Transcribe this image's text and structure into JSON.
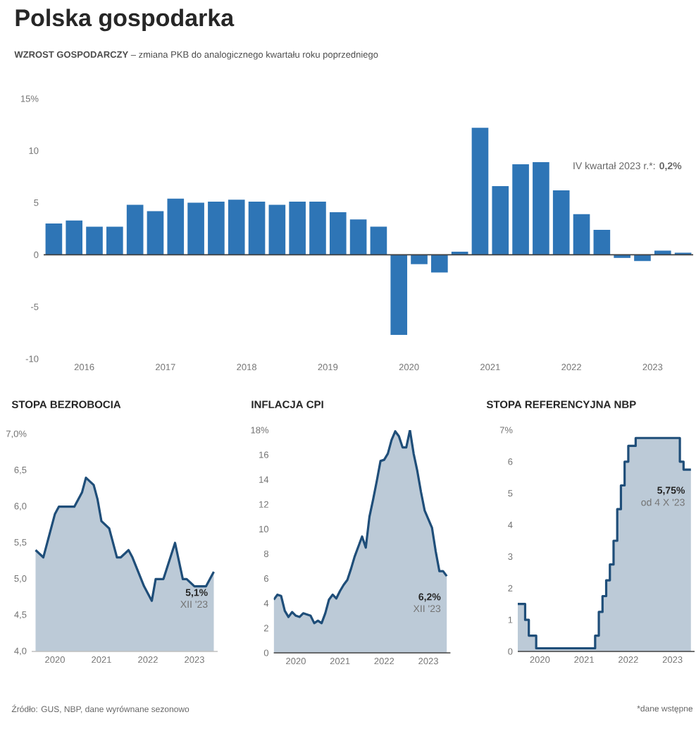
{
  "chart_data": [
    {
      "type": "bar",
      "title": "Polska gospodarka",
      "subtitle": "**WZROST GOSPODARCZY** – zmiana PKB do analogicznego kwartału roku poprzedniego",
      "x": [
        2016.125,
        2016.375,
        2016.625,
        2016.875,
        2017.125,
        2017.375,
        2017.625,
        2017.875,
        2018.125,
        2018.375,
        2018.625,
        2018.875,
        2019.125,
        2019.375,
        2019.625,
        2019.875,
        2020.125,
        2020.375,
        2020.625,
        2020.875,
        2021.125,
        2021.375,
        2021.625,
        2021.875,
        2022.125,
        2022.375,
        2022.625,
        2022.875,
        2023.125,
        2023.375,
        2023.625,
        2023.875
      ],
      "values": [
        3.0,
        3.3,
        2.7,
        2.7,
        4.8,
        4.2,
        5.4,
        5.0,
        5.1,
        5.3,
        5.1,
        4.8,
        5.1,
        5.1,
        4.1,
        3.4,
        2.7,
        -7.7,
        -0.9,
        -1.7,
        0.3,
        12.2,
        6.6,
        8.7,
        8.9,
        6.2,
        3.9,
        2.4,
        -0.3,
        -0.6,
        0.4,
        0.2
      ],
      "color": "#2e75b6",
      "xlim": [
        2016,
        2024
      ],
      "xticks": [
        {
          "value": 2016.5,
          "label": "2016"
        },
        {
          "value": 2017.5,
          "label": "2017"
        },
        {
          "value": 2018.5,
          "label": "2018"
        },
        {
          "value": 2019.5,
          "label": "2019"
        },
        {
          "value": 2020.5,
          "label": "2020"
        },
        {
          "value": 2021.5,
          "label": "2021"
        },
        {
          "value": 2022.5,
          "label": "2022"
        },
        {
          "value": 2023.5,
          "label": "2023"
        }
      ],
      "ylim": [
        -10,
        15
      ],
      "yticks": [
        {
          "value": 15,
          "label": "15%"
        },
        10,
        5,
        0,
        -5,
        -10
      ],
      "annotations": [
        "IV kwartał 2023 r.*: **0,2%**"
      ]
    },
    {
      "type": "area",
      "title": "STOPA BEZROBOCIA",
      "x": [
        "2020-02",
        "2020-04",
        "2020-07",
        "2020-08",
        "2020-12",
        "2021-02",
        "2021-03",
        "2021-05",
        "2021-06",
        "2021-07",
        "2021-09",
        "2021-11",
        "2021-12",
        "2022-02",
        "2022-03",
        "2022-06",
        "2022-08",
        "2022-09",
        "2022-11",
        "2023-02",
        "2023-04",
        "2023-05",
        "2023-07",
        "2023-10",
        "2023-12"
      ],
      "values": [
        5.4,
        5.3,
        5.9,
        6.0,
        6.0,
        6.2,
        6.4,
        6.3,
        6.1,
        5.8,
        5.7,
        5.3,
        5.3,
        5.4,
        5.3,
        4.9,
        4.7,
        5.0,
        5.0,
        5.5,
        5.0,
        5.0,
        4.9,
        4.9,
        5.1
      ],
      "color": "#1f4e79",
      "xlim": [
        "2020-01",
        "2024-01"
      ],
      "xticks": [
        {
          "value": "2020-07",
          "label": "2020"
        },
        {
          "value": "2021-07",
          "label": "2021"
        },
        {
          "value": "2022-07",
          "label": "2022"
        },
        {
          "value": "2023-07",
          "label": "2023"
        }
      ],
      "ylim": [
        4,
        7
      ],
      "yticks": [
        {
          "value": 4,
          "label": "4,0"
        },
        {
          "value": 4.5,
          "label": "4,5"
        },
        {
          "value": 5,
          "label": "5,0"
        },
        {
          "value": 5.5,
          "label": "5,5"
        },
        {
          "value": 6,
          "label": "6,0"
        },
        {
          "value": 6.5,
          "label": "6,5"
        },
        {
          "value": 7,
          "label": "7,0%"
        }
      ],
      "annotations": [
        {
          "text": "**5,1%**",
          "x": "2023-12",
          "y": 5.1
        },
        "XII '23",
        "Źródło: GUS, NBP, dane wyrównane sezonowo"
      ]
    },
    {
      "type": "area",
      "title": "INFLACJA CPI",
      "x": [
        "2020-01",
        "2020-02",
        "2020-03",
        "2020-04",
        "2020-05",
        "2020-06",
        "2020-07",
        "2020-08",
        "2020-09",
        "2020-10",
        "2020-11",
        "2020-12",
        "2021-01",
        "2021-02",
        "2021-03",
        "2021-04",
        "2021-05",
        "2021-06",
        "2021-07",
        "2021-08",
        "2021-09",
        "2021-10",
        "2021-11",
        "2021-12",
        "2022-01",
        "2022-02",
        "2022-03",
        "2022-04",
        "2022-05",
        "2022-06",
        "2022-07",
        "2022-08",
        "2022-09",
        "2022-10",
        "2022-11",
        "2022-12",
        "2023-01",
        "2023-02",
        "2023-03",
        "2023-04",
        "2023-05",
        "2023-06",
        "2023-07",
        "2023-08",
        "2023-09",
        "2023-10",
        "2023-11",
        "2023-12"
      ],
      "values": [
        4.3,
        4.7,
        4.6,
        3.4,
        2.9,
        3.3,
        3.0,
        2.9,
        3.2,
        3.1,
        3.0,
        2.4,
        2.6,
        2.4,
        3.2,
        4.3,
        4.7,
        4.4,
        5.0,
        5.5,
        5.9,
        6.8,
        7.8,
        8.6,
        9.4,
        8.5,
        11.0,
        12.4,
        13.9,
        15.5,
        15.6,
        16.1,
        17.2,
        17.9,
        17.5,
        16.6,
        16.6,
        18.0,
        16.1,
        14.7,
        13.0,
        11.5,
        10.8,
        10.1,
        8.2,
        6.6,
        6.6,
        6.2
      ],
      "color": "#1f4e79",
      "xlim": [
        "2020-01",
        "2024-01"
      ],
      "xticks": [
        {
          "value": "2020-07",
          "label": "2020"
        },
        {
          "value": "2021-07",
          "label": "2021"
        },
        {
          "value": "2022-07",
          "label": "2022"
        },
        {
          "value": "2023-07",
          "label": "2023"
        },
        {
          "value": "2021-01",
          "label": null
        },
        {
          "value": "2022-01",
          "label": null
        },
        {
          "value": "2023-01",
          "label": null
        }
      ],
      "ylim": [
        0,
        18
      ],
      "yticks": [
        0,
        2,
        4,
        6,
        8,
        10,
        12,
        14,
        16,
        {
          "value": 18,
          "label": "18%"
        }
      ],
      "annotations": [
        {
          "text": "**6,2%**",
          "x": "2023-12",
          "y": 6.2
        },
        "XII '23"
      ]
    },
    {
      "type": "area",
      "title": "STOPA REFERENCYJNA NBP",
      "x": [
        "2020-01",
        "2020-03",
        "2020-03",
        "2020-04",
        "2020-04",
        "2020-06",
        "2020-06",
        "2021-10",
        "2021-10",
        "2021-11",
        "2021-11",
        "2021-12",
        "2021-12",
        "2022-01",
        "2022-01",
        "2022-02",
        "2022-02",
        "2022-03",
        "2022-03",
        "2022-04",
        "2022-04",
        "2022-05",
        "2022-05",
        "2022-06",
        "2022-06",
        "2022-07",
        "2022-07",
        "2022-09",
        "2022-09",
        "2023-09",
        "2023-09",
        "2023-10",
        "2023-10",
        "2023-12"
      ],
      "values": [
        1.5,
        1.5,
        1.0,
        1.0,
        0.5,
        0.5,
        0.1,
        0.1,
        0.5,
        0.5,
        1.25,
        1.25,
        1.75,
        1.75,
        2.25,
        2.25,
        2.75,
        2.75,
        3.5,
        3.5,
        4.5,
        4.5,
        5.25,
        5.25,
        6.0,
        6.0,
        6.5,
        6.5,
        6.75,
        6.75,
        6.0,
        6.0,
        5.75,
        5.75
      ],
      "color": "#1f4e79",
      "xlim": [
        "2020-01",
        "2024-01"
      ],
      "xticks": [
        {
          "value": "2020-07",
          "label": "2020"
        },
        {
          "value": "2021-07",
          "label": "2021"
        },
        {
          "value": "2022-07",
          "label": "2022"
        },
        {
          "value": "2023-07",
          "label": "2023"
        },
        {
          "value": "2021-01",
          "label": null
        },
        {
          "value": "2022-01",
          "label": null
        },
        {
          "value": "2023-01",
          "label": null
        }
      ],
      "ylim": [
        0,
        7
      ],
      "yticks": [
        0,
        1,
        2,
        3,
        4,
        5,
        6,
        {
          "value": 7,
          "label": "7%"
        }
      ],
      "annotations": [
        {
          "text": "**5,75%**",
          "x": "2023-12",
          "y": 5.75
        },
        "od 4 X '23",
        "*dane wstępne"
      ]
    }
  ]
}
